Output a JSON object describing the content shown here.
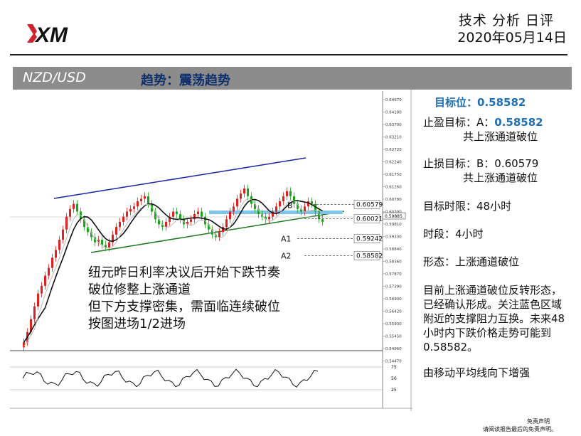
{
  "brand": {
    "logo_text": "XM",
    "logo_color": "#d0222a"
  },
  "header": {
    "title": "技术 分析 日评",
    "date": "2020年05月14日"
  },
  "banner": {
    "pair": "NZD/USD",
    "trend": "趋势：震荡趋势"
  },
  "chart_data": {
    "type": "candlestick",
    "y_axis_ticks": [
      "0.64670",
      "0.64180",
      "0.63700",
      "0.63210",
      "0.62720",
      "0.62240",
      "0.61750",
      "0.61260",
      "0.60780",
      "0.60300",
      "0.59810",
      "0.59330",
      "0.58840",
      "0.58360",
      "0.57870",
      "0.57390",
      "0.56900",
      "0.56420",
      "0.55930",
      "0.55450",
      "0.54960",
      "0.54470"
    ],
    "current_price": "0.59885",
    "levels": [
      {
        "label": "",
        "value": "0.60579",
        "marker": "B"
      },
      {
        "label": "",
        "value": "0.60021",
        "marker": ""
      },
      {
        "label": "A1",
        "value": "0.59242",
        "marker": ""
      },
      {
        "label": "A2",
        "value": "0.58582",
        "marker": ""
      }
    ],
    "rsi_ticks": [
      "75",
      "50",
      "25"
    ],
    "annotation": [
      "纽元昨日利率决议后开始下跌节奏",
      "破位修整上涨通道",
      "但下方支撑密集，需面临连续破位",
      "按图进场1/2进场"
    ],
    "colors": {
      "up": "#e01f1f",
      "down": "#1aa51a",
      "channel_top": "#1a22a8",
      "channel_bottom": "#1f7a1f",
      "support_zone": "#7ec3ea",
      "ma": "#111111"
    }
  },
  "panel": {
    "target_label": "目标位：",
    "target_value": "0.58582",
    "tp_label": "止盈目标：A：",
    "tp_value": "0.58582",
    "tp_note": "共上涨通道破位",
    "sl_line": "止损目标：B：0.60579",
    "sl_note": "共上涨通道破位",
    "timelimit": "目标时限：48小时",
    "timeframe": "时段：4小时",
    "pattern": "形态：上涨通道破位",
    "desc": [
      "目前上涨通道破位反转形态，",
      "已经确认形成。关注蓝色区域",
      "附近的支撑阻力互换。未来48",
      "小时内下跌价格走势可能到",
      "0.58582。"
    ],
    "ma_note": "由移动平均线向下增强"
  },
  "footer": {
    "line1": "免责声明",
    "line2": "请阅读报告最后的免责声明。"
  }
}
